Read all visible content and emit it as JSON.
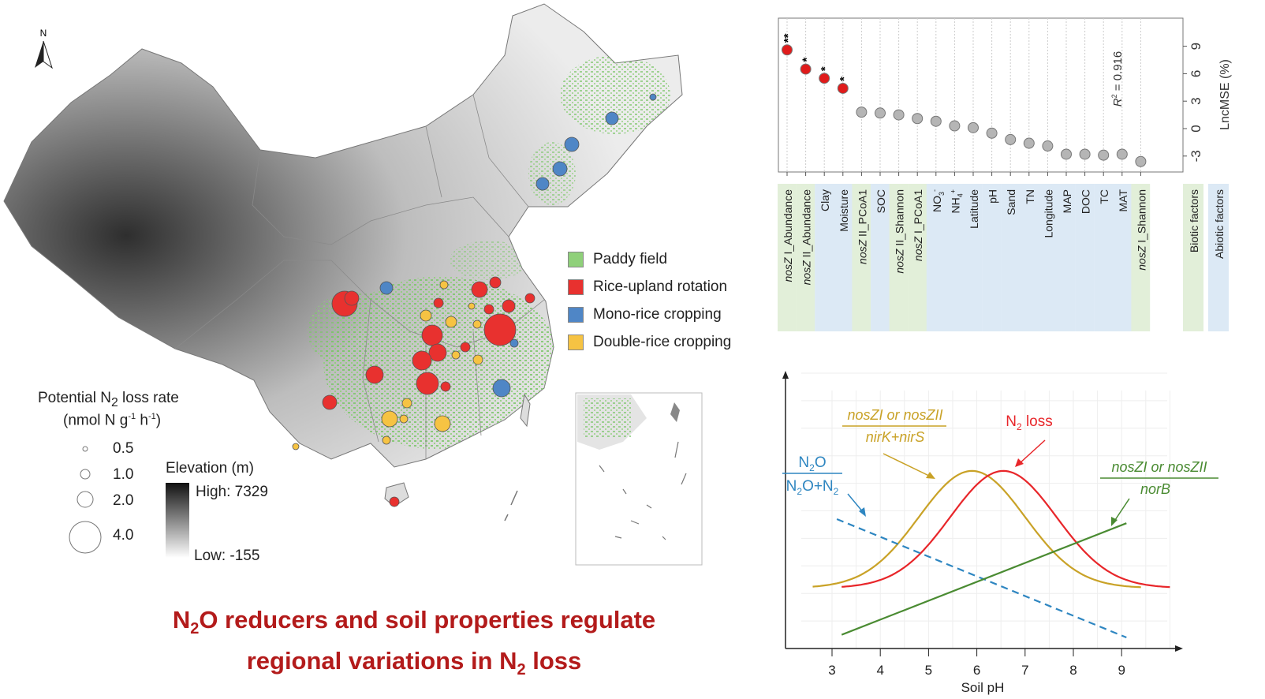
{
  "title": {
    "line1": {
      "a": "N",
      "sub": "2",
      "b": "O reducers and soil properties regulate"
    },
    "line2": {
      "a": "regional variations in N",
      "sub": "2",
      "b": " loss"
    },
    "color": "#b31b1b"
  },
  "map": {
    "north_label": "N",
    "legend": [
      {
        "label": "Paddy field",
        "color": "#8fd07a"
      },
      {
        "label": "Rice-upland rotation",
        "color": "#e8312f"
      },
      {
        "label": "Mono-rice cropping",
        "color": "#4f86c6"
      },
      {
        "label": "Double-rice cropping",
        "color": "#f6c343"
      }
    ],
    "size_legend": {
      "title_a": "Potential  N",
      "title_sub": "2",
      "title_b": " loss rate",
      "unit_a": "(nmol  N g",
      "unit_sup1": "-1",
      "unit_b": " h",
      "unit_sup2": "-1",
      "unit_c": ")",
      "values": [
        "0.5",
        "1.0",
        "2.0",
        "4.0"
      ]
    },
    "elevation": {
      "title": "Elevation  (m)",
      "high": "High: 7329",
      "low": "Low: -155"
    }
  },
  "chart_data": [
    {
      "type": "scatter",
      "ylabel": "LncMSE (%)",
      "annotation": {
        "pre": "R",
        "sup": "2",
        "post": " = 0.916"
      },
      "yticks": [
        -3,
        0,
        3,
        6,
        9
      ],
      "ylim": [
        -5,
        12
      ],
      "categories": [
        {
          "pre": "nosZ",
          "text": " I_Abundance",
          "group": "biotic"
        },
        {
          "pre": "nosZ",
          "text": " II_Abundance",
          "group": "biotic"
        },
        {
          "pre": "",
          "text": "Clay",
          "group": "abiotic"
        },
        {
          "pre": "",
          "text": "Moisture",
          "group": "abiotic"
        },
        {
          "pre": "nosZ",
          "text": " II_PCoA1",
          "group": "biotic"
        },
        {
          "pre": "",
          "text": "SOC",
          "group": "abiotic"
        },
        {
          "pre": "nosZ",
          "text": " II_Shannon",
          "group": "biotic"
        },
        {
          "pre": "nosZ",
          "text": " I_PCoA1",
          "group": "biotic"
        },
        {
          "pre": "",
          "text": "NO",
          "sub": "3",
          "sup": "-",
          "group": "abiotic"
        },
        {
          "pre": "",
          "text": "NH",
          "sub": "4",
          "sup": "+",
          "group": "abiotic"
        },
        {
          "pre": "",
          "text": "Latitude",
          "group": "abiotic"
        },
        {
          "pre": "",
          "text": "pH",
          "group": "abiotic"
        },
        {
          "pre": "",
          "text": "Sand",
          "group": "abiotic"
        },
        {
          "pre": "",
          "text": "TN",
          "group": "abiotic"
        },
        {
          "pre": "",
          "text": "Longitude",
          "group": "abiotic"
        },
        {
          "pre": "",
          "text": "MAP",
          "group": "abiotic"
        },
        {
          "pre": "",
          "text": "DOC",
          "group": "abiotic"
        },
        {
          "pre": "",
          "text": "TC",
          "group": "abiotic"
        },
        {
          "pre": "",
          "text": "MAT",
          "group": "abiotic"
        },
        {
          "pre": "nosZ",
          "text": " I_Shannon",
          "group": "biotic"
        }
      ],
      "values": [
        8.6,
        6.5,
        5.5,
        4.4,
        1.8,
        1.7,
        1.5,
        1.1,
        0.8,
        0.3,
        0.1,
        -0.5,
        -1.2,
        -1.6,
        -1.9,
        -2.8,
        -2.8,
        -2.9,
        -2.8,
        -3.6
      ],
      "significance": [
        "**",
        "*",
        "*",
        "*",
        "",
        "",
        "",
        "",
        "",
        "",
        "",
        "",
        "",
        "",
        "",
        "",
        "",
        "",
        "",
        ""
      ],
      "group_legend": [
        {
          "label": "Biotic factors",
          "color": "#e2efd9"
        },
        {
          "label": "Abiotic factors",
          "color": "#dce9f5"
        }
      ],
      "colors": {
        "significant": "#e01b1b",
        "nonsignificant": "#b5b5b5"
      }
    },
    {
      "type": "line",
      "xlabel": "Soil pH",
      "xticks": [
        3,
        4,
        5,
        6,
        7,
        8,
        9
      ],
      "xlim": [
        2.3,
        10.2
      ],
      "ylim": [
        0,
        1
      ],
      "series": [
        {
          "name": "nosZ ratio nirK+nirS",
          "kind": "gaussian",
          "center": 5.9,
          "sd": 1.1,
          "base": 0.22,
          "peak": 0.645,
          "x_range": [
            2.6,
            9.4
          ],
          "color": "#c9a227",
          "label": {
            "num": "nosZI or nosZII",
            "den": "nirK+nirS"
          }
        },
        {
          "name": "N2 loss",
          "kind": "gaussian",
          "center": 6.55,
          "sd": 1.1,
          "base": 0.22,
          "peak": 0.645,
          "x_range": [
            3.2,
            10.0
          ],
          "color": "#e8262a",
          "label": {
            "a": "N",
            "sub": "2",
            "b": " loss"
          }
        },
        {
          "name": "N2O/(N2O+N2)",
          "kind": "linear",
          "points": [
            [
              3.1,
              0.47
            ],
            [
              9.1,
              0.04
            ]
          ],
          "dashed": true,
          "color": "#2e86c1",
          "label": {
            "num_a": "N",
            "num_sub": "2",
            "num_b": "O",
            "den_a": "N",
            "den_sub1": "2",
            "den_b": "O+N",
            "den_sub2": "2"
          }
        },
        {
          "name": "nosZ ratio norB",
          "kind": "linear",
          "points": [
            [
              3.2,
              0.05
            ],
            [
              9.1,
              0.455
            ]
          ],
          "color": "#4a8b32",
          "label": {
            "num": "nosZI or nosZII",
            "den": "norB"
          }
        }
      ]
    }
  ]
}
